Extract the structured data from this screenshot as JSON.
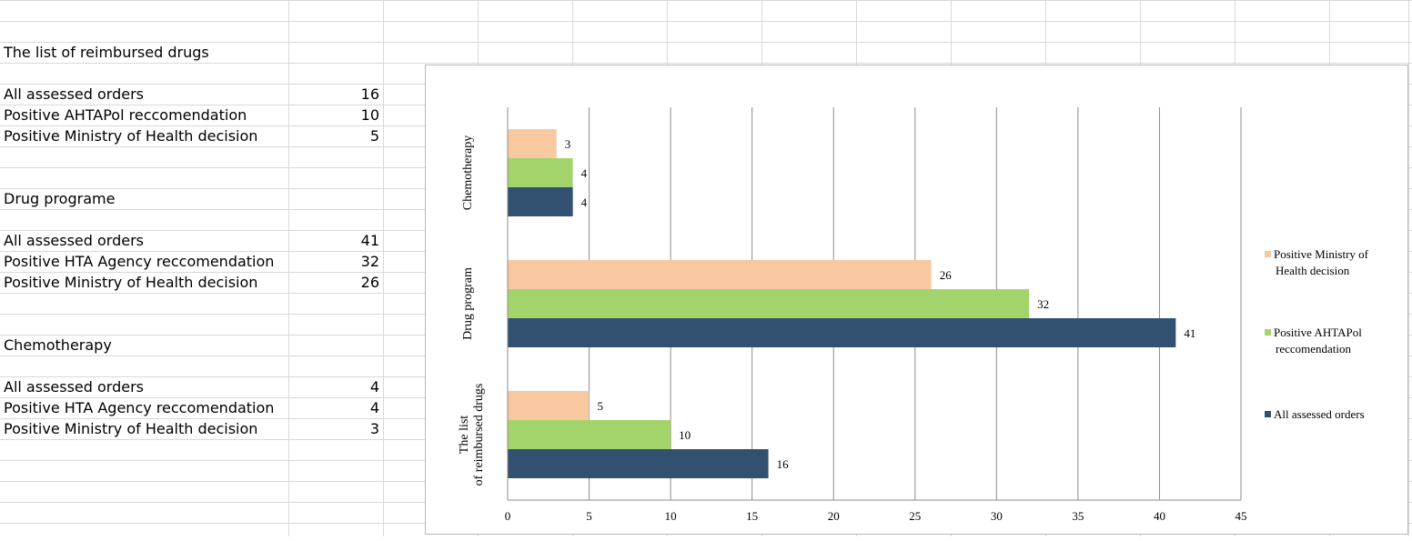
{
  "sheet": {
    "groups": [
      {
        "title": "The list of reimbursed drugs",
        "rows": [
          {
            "label": "All assessed orders",
            "value": "16"
          },
          {
            "label": "Positive AHTAPol reccomendation",
            "value": "10"
          },
          {
            "label": "Positive Ministry of Health decision",
            "value": "5"
          }
        ]
      },
      {
        "title": "Drug programe",
        "rows": [
          {
            "label": "All assessed orders",
            "value": "41"
          },
          {
            "label": "Positive HTA Agency reccomendation",
            "value": "32"
          },
          {
            "label": "Positive Ministry of Health decision",
            "value": "26"
          }
        ]
      },
      {
        "title": "Chemotherapy",
        "rows": [
          {
            "label": "All assessed orders",
            "value": "4"
          },
          {
            "label": "Positive HTA Agency reccomendation",
            "value": "4"
          },
          {
            "label": "Positive Ministry of Health decision",
            "value": "3"
          }
        ]
      }
    ]
  },
  "chart_data": {
    "type": "bar",
    "orientation": "horizontal",
    "categories": [
      "The list of reimbursed drugs",
      "Drug program",
      "Chemotherapy"
    ],
    "series": [
      {
        "name": "All assessed orders",
        "values": [
          16,
          41,
          4
        ],
        "color": "#32506f"
      },
      {
        "name": "Positive AHTAPol reccomendation",
        "values": [
          10,
          32,
          4
        ],
        "color": "#a3d46b"
      },
      {
        "name": "Positive Ministry of Health decision",
        "values": [
          5,
          26,
          3
        ],
        "color": "#f8c9a1"
      }
    ],
    "xlim": [
      0,
      45
    ],
    "xticks": [
      "0",
      "5",
      "10",
      "15",
      "20",
      "25",
      "30",
      "35",
      "40",
      "45"
    ],
    "grid": true,
    "legend_position": "right"
  }
}
